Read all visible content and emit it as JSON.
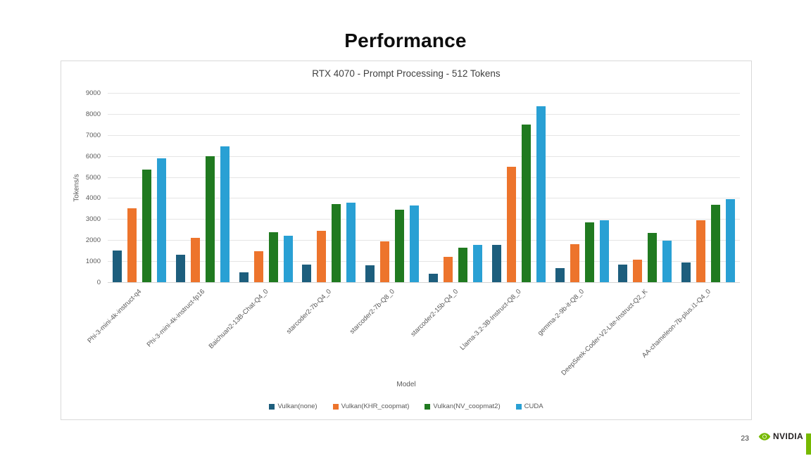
{
  "slide": {
    "title": "Performance",
    "page_number": "23",
    "brand": "NVIDIA",
    "brand_accent": "#76b900"
  },
  "chart_data": {
    "type": "bar",
    "title": "RTX 4070 - Prompt Processing - 512 Tokens",
    "xlabel": "Model",
    "ylabel": "Tokens/s",
    "ylim": [
      0,
      9000
    ],
    "ytick_step": 1000,
    "grid": true,
    "legend_position": "bottom",
    "categories": [
      "Phi-3-mini-4k-instruct-q4",
      "Phi-3-mini-4k-instruct-fp16",
      "Baichuan2-13B-Chat-Q4_0",
      "starcoder2-7b-Q4_0",
      "starcoder2-7b-Q8_0",
      "starcoder2-15b-Q4_0",
      "Llama-3.2-3B-Instruct-Q8_0",
      "gemma-2-9b-it-Q8_0",
      "DeepSeek-Coder-V2-Lite-Instruct-Q2_K",
      "AA-chameleon-7b-plus.i1-Q4_0"
    ],
    "series": [
      {
        "name": "Vulkan(none)",
        "color": "#1d5e7d",
        "values": [
          1520,
          1300,
          470,
          850,
          800,
          390,
          1780,
          670,
          830,
          940
        ]
      },
      {
        "name": "Vulkan(KHR_coopmat)",
        "color": "#ed742c",
        "values": [
          3520,
          2100,
          1480,
          2450,
          1950,
          1200,
          5500,
          1820,
          1060,
          2930
        ]
      },
      {
        "name": "Vulkan(NV_coopmat2)",
        "color": "#207a20",
        "values": [
          5340,
          6000,
          2370,
          3700,
          3460,
          1640,
          7490,
          2840,
          2340,
          3680
        ]
      },
      {
        "name": "CUDA",
        "color": "#29a0d4",
        "values": [
          5900,
          6450,
          2200,
          3790,
          3660,
          1780,
          8360,
          2930,
          1980,
          3960
        ]
      }
    ]
  }
}
